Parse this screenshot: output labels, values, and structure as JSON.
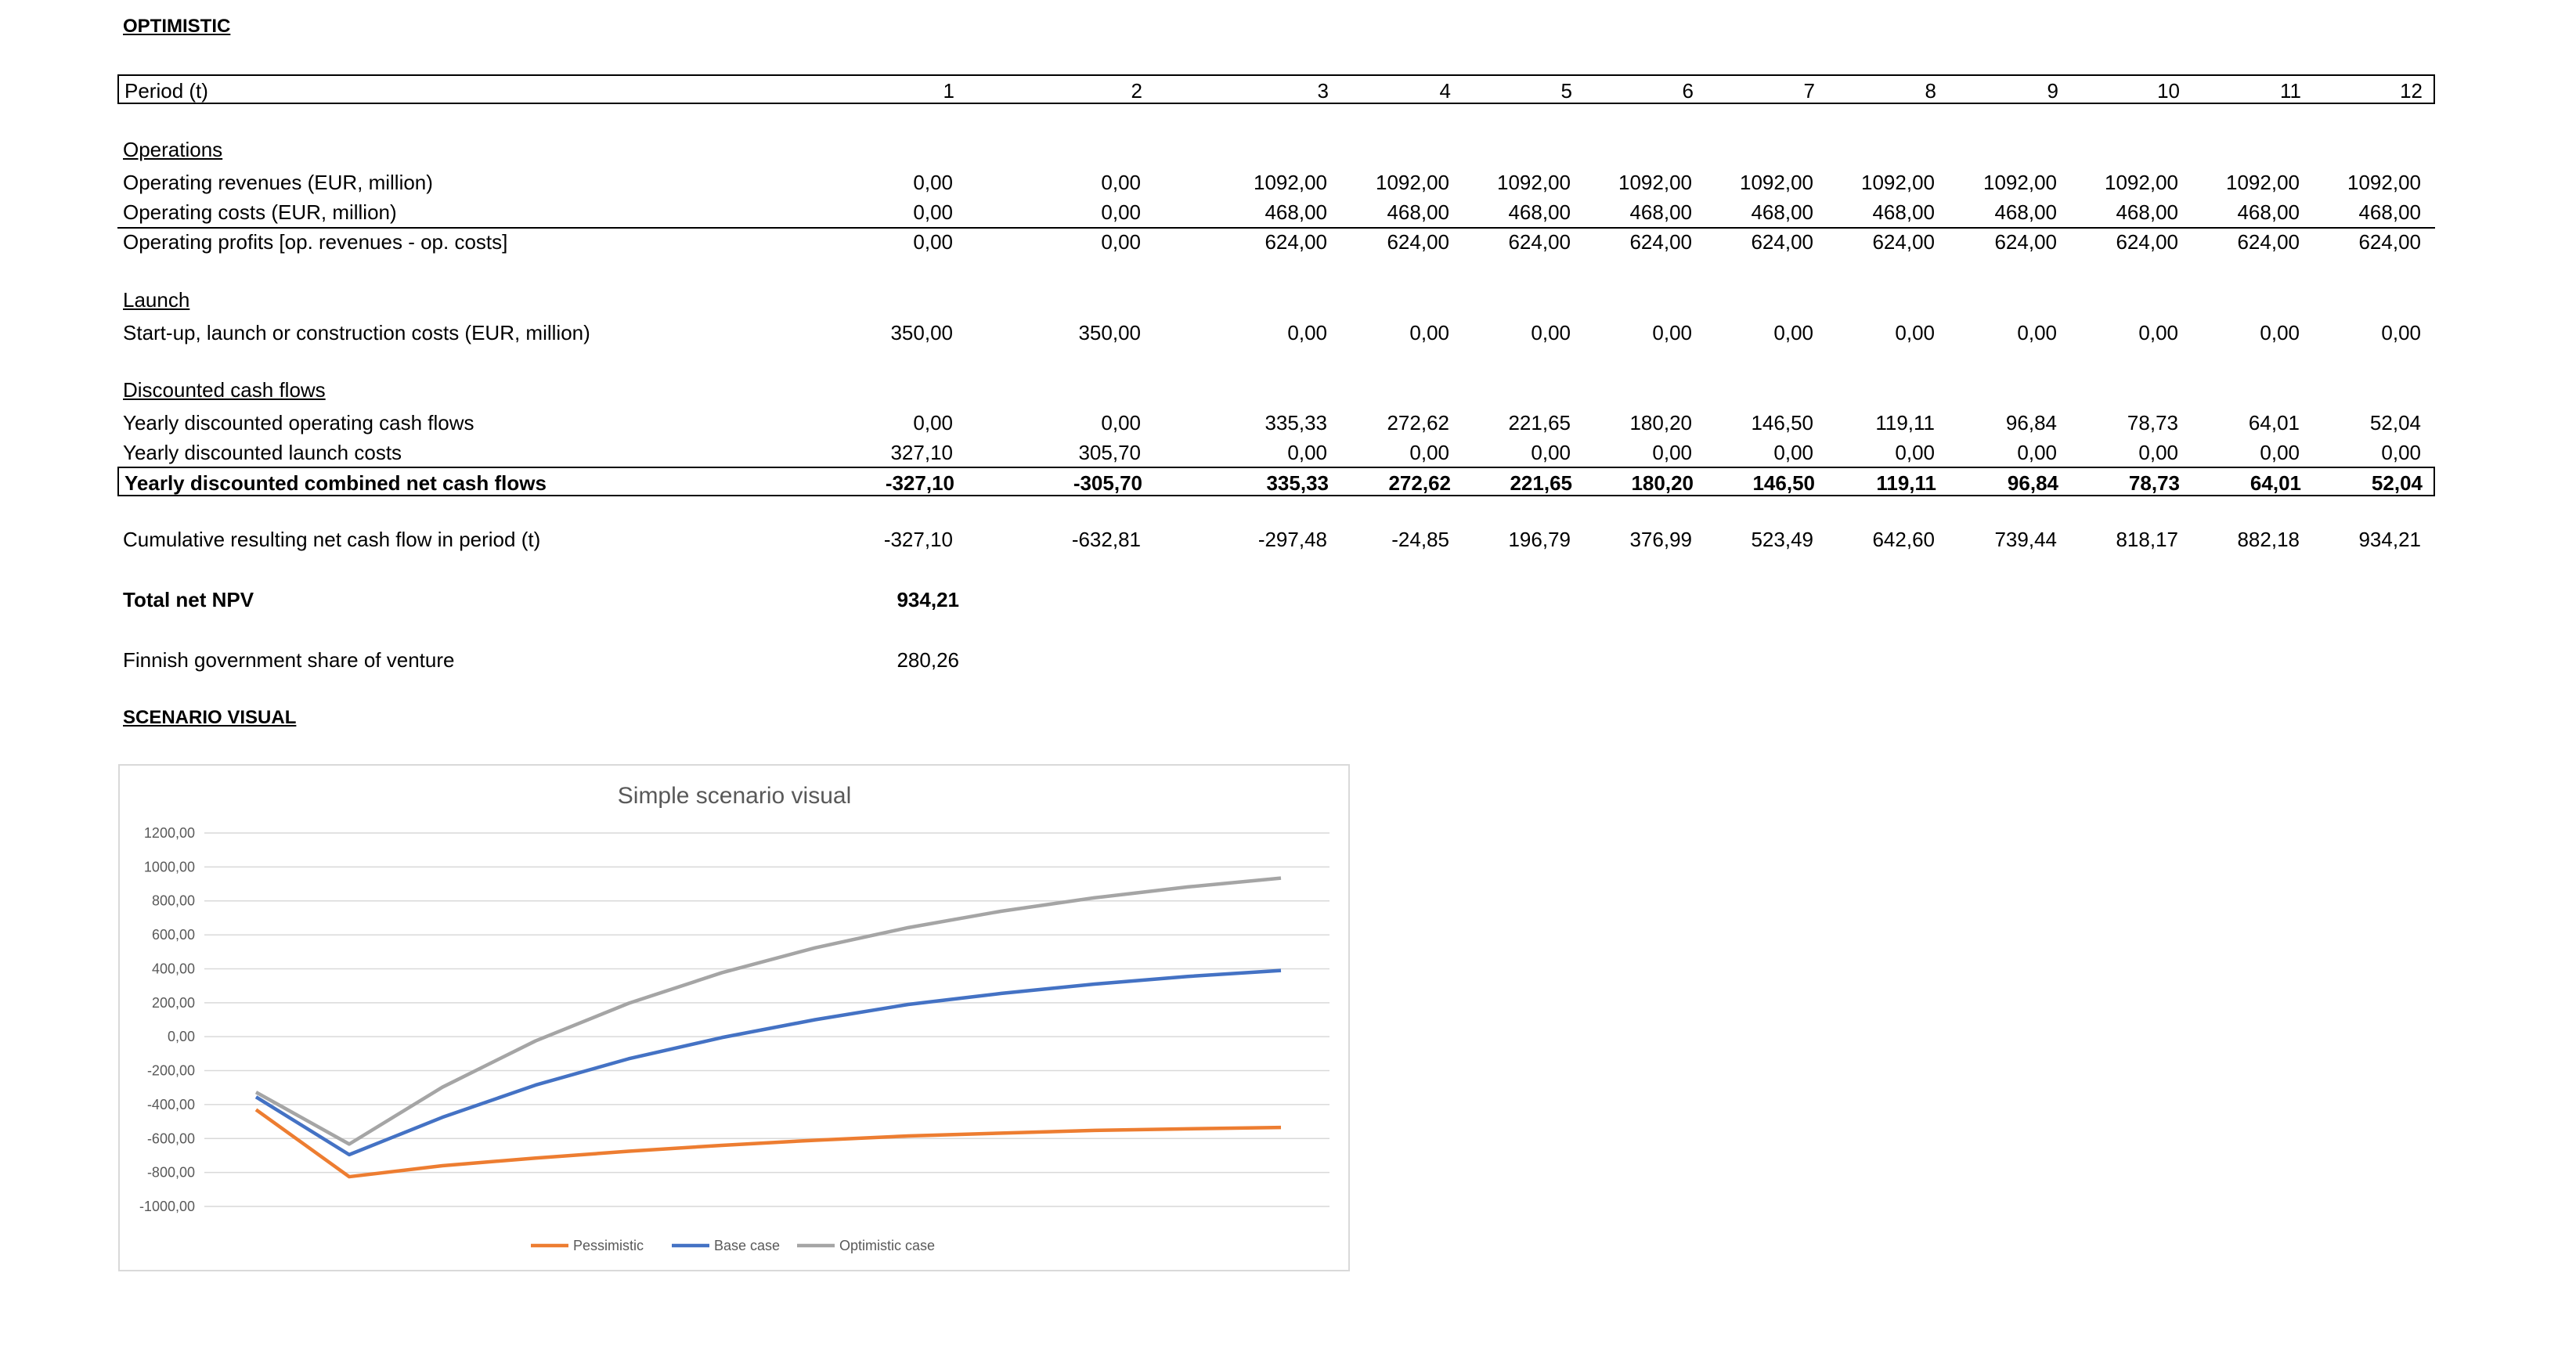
{
  "sheet_title": "OPTIMISTIC",
  "period_row": {
    "label": "Period (t)",
    "values": [
      "1",
      "2",
      "3",
      "4",
      "5",
      "6",
      "7",
      "8",
      "9",
      "10",
      "11",
      "12"
    ]
  },
  "operations": {
    "title": "Operations",
    "rows": [
      {
        "label": "Operating revenues (EUR, million)",
        "values": [
          "0,00",
          "0,00",
          "1092,00",
          "1092,00",
          "1092,00",
          "1092,00",
          "1092,00",
          "1092,00",
          "1092,00",
          "1092,00",
          "1092,00",
          "1092,00"
        ]
      },
      {
        "label": "Operating costs (EUR, million)",
        "values": [
          "0,00",
          "0,00",
          "468,00",
          "468,00",
          "468,00",
          "468,00",
          "468,00",
          "468,00",
          "468,00",
          "468,00",
          "468,00",
          "468,00"
        ]
      },
      {
        "label": "Operating profits [op. revenues - op. costs]",
        "values": [
          "0,00",
          "0,00",
          "624,00",
          "624,00",
          "624,00",
          "624,00",
          "624,00",
          "624,00",
          "624,00",
          "624,00",
          "624,00",
          "624,00"
        ]
      }
    ]
  },
  "launch": {
    "title": "Launch",
    "rows": [
      {
        "label": "Start-up, launch or construction costs (EUR, million)",
        "values": [
          "350,00",
          "350,00",
          "0,00",
          "0,00",
          "0,00",
          "0,00",
          "0,00",
          "0,00",
          "0,00",
          "0,00",
          "0,00",
          "0,00"
        ]
      }
    ]
  },
  "discounted": {
    "title": "Discounted cash flows",
    "rows": [
      {
        "label": "Yearly discounted operating cash flows",
        "values": [
          "0,00",
          "0,00",
          "335,33",
          "272,62",
          "221,65",
          "180,20",
          "146,50",
          "119,11",
          "96,84",
          "78,73",
          "64,01",
          "52,04"
        ]
      },
      {
        "label": "Yearly discounted launch costs",
        "values": [
          "327,10",
          "305,70",
          "0,00",
          "0,00",
          "0,00",
          "0,00",
          "0,00",
          "0,00",
          "0,00",
          "0,00",
          "0,00",
          "0,00"
        ]
      },
      {
        "label": "Yearly discounted combined net cash flows",
        "values": [
          "-327,10",
          "-305,70",
          "335,33",
          "272,62",
          "221,65",
          "180,20",
          "146,50",
          "119,11",
          "96,84",
          "78,73",
          "64,01",
          "52,04"
        ]
      }
    ]
  },
  "cumulative": {
    "label": "Cumulative resulting net cash flow in period (t)",
    "values": [
      "-327,10",
      "-632,81",
      "-297,48",
      "-24,85",
      "196,79",
      "376,99",
      "523,49",
      "642,60",
      "739,44",
      "818,17",
      "882,18",
      "934,21"
    ]
  },
  "total_npv": {
    "label": "Total net NPV",
    "value": "934,21"
  },
  "gov_share": {
    "label": "Finnish government share of venture",
    "value": "280,26"
  },
  "scenario_title": "SCENARIO VISUAL",
  "chart_data": {
    "type": "line",
    "title": "Simple scenario visual",
    "x": [
      1,
      2,
      3,
      4,
      5,
      6,
      7,
      8,
      9,
      10,
      11,
      12
    ],
    "ylim": [
      -1000,
      1200
    ],
    "yticks": [
      "1200,00",
      "1000,00",
      "800,00",
      "600,00",
      "400,00",
      "200,00",
      "0,00",
      "-200,00",
      "-400,00",
      "-600,00",
      "-800,00",
      "-1000,00"
    ],
    "grid": true,
    "legend_position": "bottom",
    "series": [
      {
        "name": "Pessimistic",
        "color": "#ED7D31",
        "values": [
          -430,
          -825,
          -760,
          -715,
          -675,
          -640,
          -610,
          -585,
          -568,
          -552,
          -543,
          -535
        ]
      },
      {
        "name": "Base case",
        "color": "#4472C4",
        "values": [
          -355,
          -695,
          -475,
          -285,
          -130,
          -5,
          100,
          190,
          255,
          310,
          355,
          390
        ]
      },
      {
        "name": "Optimistic case",
        "color": "#A5A5A5",
        "values": [
          -327.1,
          -632.81,
          -297.48,
          -24.85,
          196.79,
          376.99,
          523.49,
          642.6,
          739.44,
          818.17,
          882.18,
          934.21
        ]
      }
    ]
  }
}
